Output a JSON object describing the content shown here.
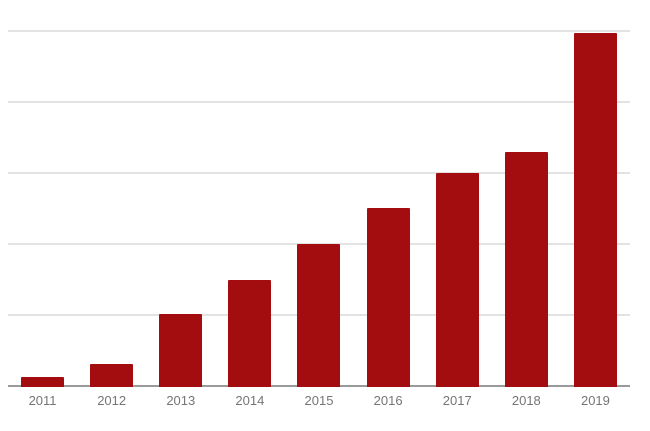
{
  "chart_data": {
    "type": "bar",
    "title": "",
    "xlabel": "",
    "ylabel": "",
    "categories": [
      "2011",
      "2012",
      "2013",
      "2014",
      "2015",
      "2016",
      "2017",
      "2018",
      "2019"
    ],
    "values": [
      0.11,
      0.3,
      1.0,
      1.48,
      1.99,
      2.49,
      2.99,
      3.28,
      4.96
    ],
    "ylim": [
      0,
      5
    ],
    "gridline_interval": 1,
    "y_axis_tick_labels": [],
    "grid": "horizontal",
    "legend_position": "none"
  },
  "colors": {
    "bar": "#a30d0f",
    "gridline": "#e3e3e3",
    "axis_line": "#9a9a9a",
    "tick_label": "#757575",
    "background": "#ffffff"
  }
}
